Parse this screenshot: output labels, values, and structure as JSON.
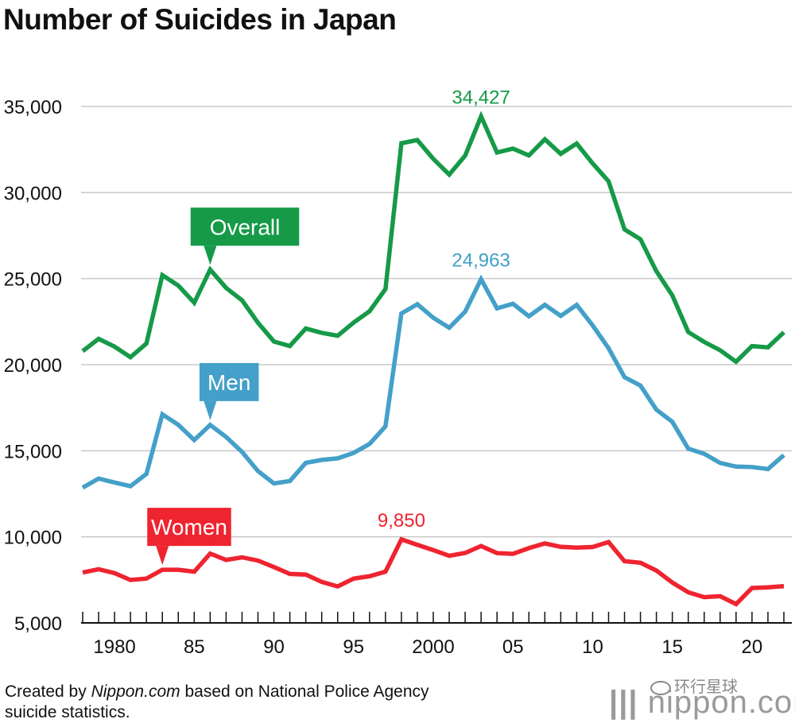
{
  "title": "Number of Suicides in Japan",
  "footer": {
    "prefix": "Created by ",
    "source_name": "Nippon.com",
    "suffix": " based on National Police Agency",
    "line2": "suicide statistics."
  },
  "brand": {
    "text": "nippon.com"
  },
  "watermark": {
    "text": "环行星球"
  },
  "chart_data": {
    "type": "line",
    "title": "Number of Suicides in Japan",
    "xlabel": "",
    "ylabel": "",
    "xlim": [
      1978,
      2022
    ],
    "ylim": [
      5000,
      35000
    ],
    "ytick_values": [
      5000,
      10000,
      15000,
      20000,
      25000,
      30000,
      35000
    ],
    "ytick_labels": [
      "5,000",
      "10,000",
      "15,000",
      "20,000",
      "25,000",
      "30,000",
      "35,000"
    ],
    "xtick_values": [
      1980,
      1985,
      1990,
      1995,
      2000,
      2005,
      2010,
      2015,
      2020
    ],
    "xtick_labels": [
      "1980",
      "85",
      "90",
      "95",
      "2000",
      "05",
      "10",
      "15",
      "20"
    ],
    "x": [
      1978,
      1979,
      1980,
      1981,
      1982,
      1983,
      1984,
      1985,
      1986,
      1987,
      1988,
      1989,
      1990,
      1991,
      1992,
      1993,
      1994,
      1995,
      1996,
      1997,
      1998,
      1999,
      2000,
      2001,
      2002,
      2003,
      2004,
      2005,
      2006,
      2007,
      2008,
      2009,
      2010,
      2011,
      2012,
      2013,
      2014,
      2015,
      2016,
      2017,
      2018,
      2019,
      2020,
      2021,
      2022
    ],
    "series": [
      {
        "name": "Overall",
        "color": "#169a48",
        "values": [
          20788,
          21503,
          21048,
          20434,
          21228,
          25202,
          24596,
          23599,
          25524,
          24460,
          23742,
          22436,
          21346,
          21084,
          22104,
          21851,
          21679,
          22445,
          23104,
          24391,
          32863,
          33048,
          31957,
          31042,
          32143,
          34427,
          32325,
          32552,
          32155,
          33093,
          32249,
          32845,
          31690,
          30651,
          27858,
          27283,
          25427,
          24025,
          21897,
          21321,
          20840,
          20169,
          21081,
          21007,
          21881
        ],
        "peak_label": "34,427"
      },
      {
        "name": "Men",
        "color": "#44a0c8",
        "values": [
          12859,
          13386,
          13155,
          12942,
          13654,
          17116,
          16508,
          15624,
          16497,
          15802,
          14934,
          13818,
          13102,
          13242,
          14296,
          14468,
          14560,
          14874,
          15393,
          16416,
          22975,
          23512,
          22727,
          22144,
          23080,
          24963,
          23272,
          23540,
          22813,
          23478,
          22831,
          23472,
          22283,
          20955,
          19273,
          18787,
          17386,
          16681,
          15121,
          14826,
          14290,
          14078,
          14055,
          13939,
          14746
        ],
        "peak_label": "24,963"
      },
      {
        "name": "Women",
        "color": "#ee2430",
        "values": [
          7929,
          8117,
          7893,
          7492,
          7574,
          8086,
          8088,
          7975,
          9027,
          8658,
          8808,
          8618,
          8244,
          7842,
          7808,
          7383,
          7119,
          7571,
          7711,
          7975,
          9850,
          9536,
          9230,
          8898,
          9063,
          9464,
          9053,
          9012,
          9342,
          9615,
          9418,
          9373,
          9407,
          9696,
          8585,
          8496,
          8041,
          7344,
          6776,
          6495,
          6550,
          6091,
          7026,
          7068,
          7135
        ],
        "peak_label": "9,850"
      }
    ],
    "annotations": [
      {
        "series": "Overall",
        "label": "Overall",
        "anchor_x": 1986
      },
      {
        "series": "Men",
        "label": "Men",
        "anchor_x": 1986
      },
      {
        "series": "Women",
        "label": "Women",
        "anchor_x": 1983
      }
    ]
  }
}
